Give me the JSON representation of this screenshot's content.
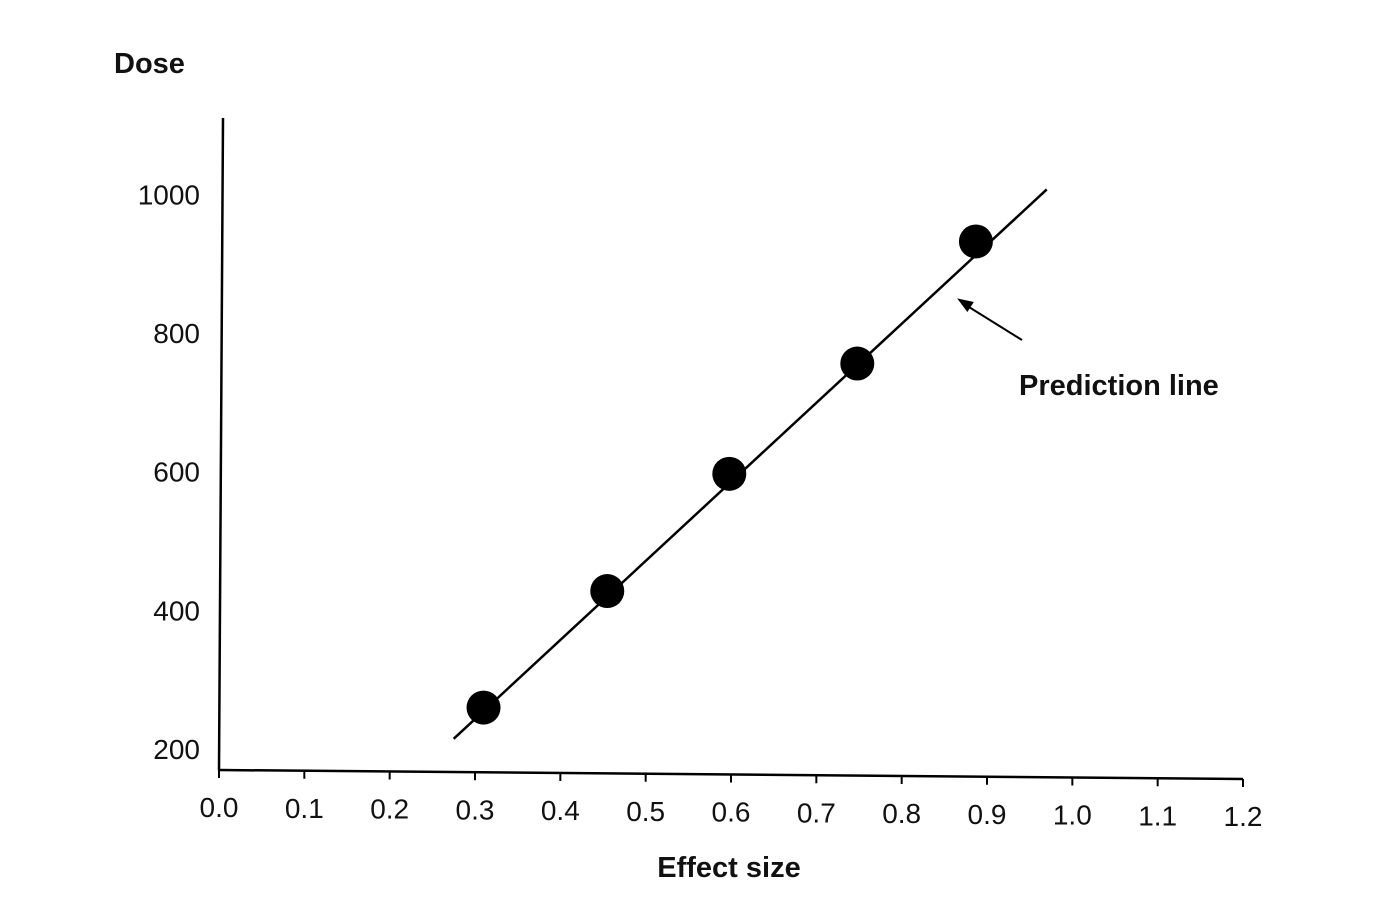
{
  "chart_data": {
    "type": "scatter",
    "xlabel": "Effect size",
    "ylabel": "Dose",
    "xlim": [
      0.0,
      1.2
    ],
    "ylim": [
      170,
      1110
    ],
    "x_ticks": [
      0.0,
      0.1,
      0.2,
      0.3,
      0.4,
      0.5,
      0.6,
      0.7,
      0.8,
      0.9,
      1.0,
      1.1,
      1.2
    ],
    "x_tick_labels": [
      "0.0",
      "0.1",
      "0.2",
      "0.3",
      "0.4",
      "0.5",
      "0.6",
      "0.7",
      "0.8",
      "0.9",
      "1.0",
      "1.1",
      "1.2"
    ],
    "y_ticks": [
      200,
      400,
      600,
      800,
      1000
    ],
    "y_tick_labels": [
      "200",
      "400",
      "600",
      "800",
      "1000"
    ],
    "points": [
      {
        "x": 0.31,
        "y": 260
      },
      {
        "x": 0.455,
        "y": 428
      },
      {
        "x": 0.598,
        "y": 597
      },
      {
        "x": 0.748,
        "y": 756
      },
      {
        "x": 0.887,
        "y": 932
      }
    ],
    "line": {
      "x": [
        0.275,
        0.97
      ],
      "y": [
        215,
        1007
      ]
    },
    "annotation": {
      "text": "Prediction line",
      "arrow_target": {
        "x": 0.865,
        "y": 850
      }
    },
    "grid": false,
    "colors": {
      "points": "#000000",
      "line": "#000000",
      "text": "#111111"
    }
  }
}
